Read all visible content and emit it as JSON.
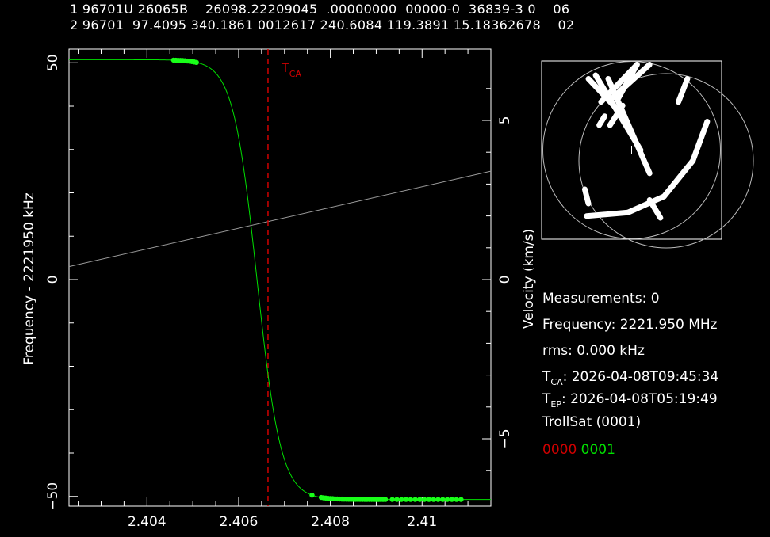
{
  "tle": {
    "line1": "1 96701U 26065B    26098.22209045  .00000000  00000-0  36839-3 0    06",
    "line2": "2 96701  97.4095 340.1861 0012617 240.6084 119.3891 15.18362678    02"
  },
  "info": {
    "measurements": "Measurements: 0",
    "frequency": "Frequency: 2221.950 MHz",
    "rms": "rms: 0.000 kHz",
    "tca_label": "T",
    "tca_sub": "CA",
    "tca_value": ": 2026-04-08T09:45:34",
    "tep_label": "T",
    "tep_sub": "EP",
    "tep_value": ": 2026-04-08T05:19:49",
    "satellite": "TrollSat  (0001)",
    "code_red": "0000",
    "code_green": "0001"
  },
  "colors": {
    "red": "#d00000",
    "green": "#00e000",
    "bright_green": "#19ff19",
    "grey": "#9a9a9a",
    "white": "#ffffff"
  },
  "chart_data": {
    "type": "line",
    "xlabel": "",
    "ylabel": "Frequency - 2221950 kHz",
    "y2label": "Velocity (km/s)",
    "xlim": [
      2.4023,
      2.4115
    ],
    "ylim": [
      -51,
      51
    ],
    "y2lim": [
      -6.9,
      6.9
    ],
    "xticks": [
      2.404,
      2.406,
      2.408,
      2.41
    ],
    "xtick_labels": [
      "2.404",
      "2.406",
      "2.408",
      "2.41"
    ],
    "yticks": [
      -50,
      0,
      50
    ],
    "ytick_labels": [
      "−50",
      "0",
      "50"
    ],
    "y2ticks": [
      -5,
      0,
      5
    ],
    "y2tick_labels": [
      "−5",
      "0",
      "5"
    ],
    "tca_x": 2.40664,
    "tca_label": "T",
    "tca_sub": "CA",
    "model_curve": {
      "name": "",
      "amplitude": 50.7,
      "x0": 2.4064,
      "width": 0.00052
    },
    "grey_line": {
      "x": [
        2.4023,
        2.4115
      ],
      "y": [
        3,
        25
      ]
    },
    "measurements": [
      {
        "x": [
          2.40458,
          2.40463,
          2.40468,
          2.40473,
          2.40478,
          2.40483,
          2.40488,
          2.40493,
          2.40498,
          2.40503,
          2.40508
        ]
      },
      {
        "x": [
          2.4076
        ]
      },
      {
        "x": [
          2.4078,
          2.40785,
          2.4079,
          2.40795,
          2.408,
          2.40805,
          2.4081,
          2.40815,
          2.4082,
          2.40825,
          2.4083,
          2.40835,
          2.4084,
          2.40845,
          2.4085,
          2.40855,
          2.4086,
          2.40865,
          2.4087,
          2.40875,
          2.4088,
          2.40885,
          2.4089,
          2.40895,
          2.409,
          2.40905,
          2.4091,
          2.40915,
          2.4092
        ]
      },
      {
        "x": [
          2.40935,
          2.40945,
          2.40955,
          2.40965,
          2.40975,
          2.40985,
          2.40995,
          2.41005,
          2.41015,
          2.41025,
          2.41035,
          2.41045,
          2.41055,
          2.41065,
          2.41075,
          2.41085
        ]
      }
    ]
  },
  "sky_map": {
    "tracks": [
      [
        [
          0.3,
          0.08
        ],
        [
          0.55,
          0.5
        ]
      ],
      [
        [
          0.37,
          0.1
        ],
        [
          0.6,
          0.63
        ]
      ],
      [
        [
          0.26,
          0.1
        ],
        [
          0.4,
          0.25
        ]
      ],
      [
        [
          0.33,
          0.23
        ],
        [
          0.53,
          0.02
        ]
      ],
      [
        [
          0.38,
          0.22
        ],
        [
          0.6,
          0.02
        ]
      ],
      [
        [
          0.42,
          0.22
        ],
        [
          0.53,
          0.02
        ]
      ],
      [
        [
          0.38,
          0.36
        ],
        [
          0.45,
          0.25
        ]
      ],
      [
        [
          0.32,
          0.36
        ],
        [
          0.35,
          0.31
        ]
      ],
      [
        [
          0.76,
          0.23
        ],
        [
          0.81,
          0.1
        ]
      ],
      [
        [
          0.25,
          0.87
        ],
        [
          0.48,
          0.85
        ]
      ],
      [
        [
          0.48,
          0.85
        ],
        [
          0.68,
          0.76
        ]
      ],
      [
        [
          0.68,
          0.76
        ],
        [
          0.84,
          0.56
        ]
      ],
      [
        [
          0.84,
          0.56
        ],
        [
          0.92,
          0.34
        ]
      ],
      [
        [
          0.24,
          0.72
        ],
        [
          0.26,
          0.8
        ]
      ],
      [
        [
          0.6,
          0.78
        ],
        [
          0.66,
          0.88
        ]
      ]
    ]
  }
}
